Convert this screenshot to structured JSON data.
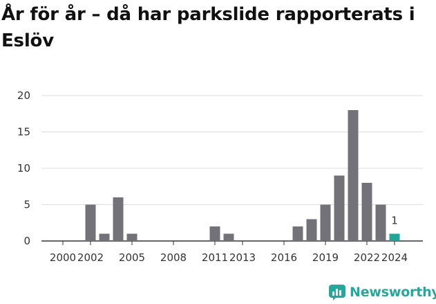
{
  "title": "År för år – då har parkslide rapporterats i Eslöv",
  "brand": {
    "name": "Newsworthy",
    "icon": "newsworthy-logo-icon",
    "color": "#26a79a"
  },
  "chart_data": {
    "type": "bar",
    "title": "År för år – då har parkslide rapporterats i Eslöv",
    "xlabel": "",
    "ylabel": "",
    "categories": [
      2000,
      2001,
      2002,
      2003,
      2004,
      2005,
      2006,
      2007,
      2008,
      2009,
      2010,
      2011,
      2012,
      2013,
      2014,
      2015,
      2016,
      2017,
      2018,
      2019,
      2020,
      2021,
      2022,
      2023,
      2024
    ],
    "values": [
      0,
      0,
      5,
      1,
      6,
      1,
      0,
      0,
      0,
      0,
      0,
      2,
      1,
      0,
      0,
      0,
      0,
      2,
      3,
      5,
      9,
      18,
      8,
      5,
      1
    ],
    "x_ticks": [
      "2000",
      "2002",
      "2005",
      "2008",
      "2011",
      "2013",
      "2016",
      "2019",
      "2022",
      "2024"
    ],
    "y_ticks": [
      0,
      5,
      10,
      15,
      20
    ],
    "ylim": [
      0,
      20
    ],
    "grid": true,
    "legend": "none",
    "bar_color": "#737278",
    "highlight": {
      "category": 2024,
      "color": "#23a499",
      "label": "1"
    }
  }
}
